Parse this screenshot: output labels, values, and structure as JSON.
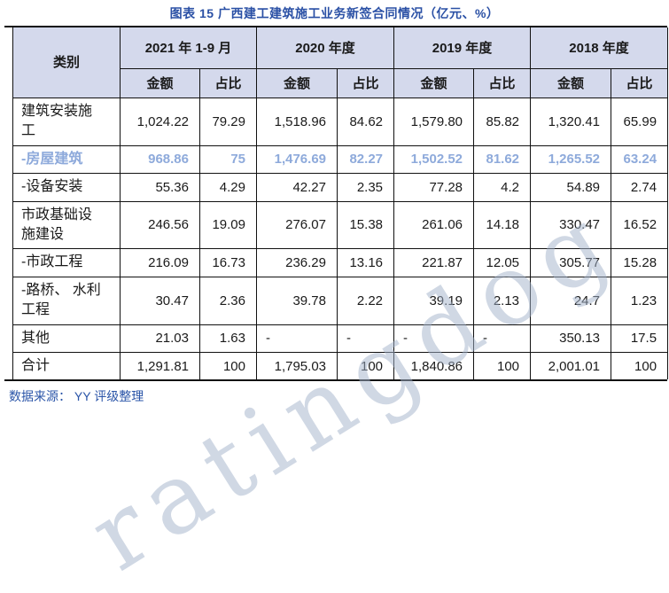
{
  "title": "图表 15 广西建工建筑施工业务新签合同情况（亿元、%）",
  "footer": {
    "source_label": "数据来源： YY 评级整理"
  },
  "watermark": {
    "text": "ratingdog",
    "color": "#a2b1ca"
  },
  "colors": {
    "title_blue": "#2a50a5",
    "footer_blue": "#2b55a8",
    "header_bg": "#d4d9ec",
    "highlight_row_blue": "#8eaadb",
    "border": "#111111"
  },
  "table": {
    "category_header": "类别",
    "year_headers": [
      "2021 年 1-9 月",
      "2020 年度",
      "2019 年度",
      "2018 年度"
    ],
    "sub_headers": {
      "amount": "金额",
      "share": "占比"
    },
    "rows": [
      {
        "label": "建筑安装施工",
        "highlight": false,
        "values": [
          "1,024.22",
          "79.29",
          "1,518.96",
          "84.62",
          "1,579.80",
          "85.82",
          "1,320.41",
          "65.99"
        ]
      },
      {
        "label": "-房屋建筑",
        "highlight": true,
        "values": [
          "968.86",
          "75",
          "1,476.69",
          "82.27",
          "1,502.52",
          "81.62",
          "1,265.52",
          "63.24"
        ]
      },
      {
        "label": "-设备安装",
        "highlight": false,
        "values": [
          "55.36",
          "4.29",
          "42.27",
          "2.35",
          "77.28",
          "4.2",
          "54.89",
          "2.74"
        ]
      },
      {
        "label": "市政基础设施建设",
        "highlight": false,
        "values": [
          "246.56",
          "19.09",
          "276.07",
          "15.38",
          "261.06",
          "14.18",
          "330.47",
          "16.52"
        ]
      },
      {
        "label": "-市政工程",
        "highlight": false,
        "values": [
          "216.09",
          "16.73",
          "236.29",
          "13.16",
          "221.87",
          "12.05",
          "305.77",
          "15.28"
        ]
      },
      {
        "label": "-路桥、 水利工程",
        "highlight": false,
        "values": [
          "30.47",
          "2.36",
          "39.78",
          "2.22",
          "39.19",
          "2.13",
          "24.7",
          "1.23"
        ]
      },
      {
        "label": "其他",
        "highlight": false,
        "values": [
          "21.03",
          "1.63",
          "-",
          "-",
          "-",
          "-",
          "350.13",
          "17.5"
        ]
      },
      {
        "label": "合计",
        "highlight": false,
        "values": [
          "1,291.81",
          "100",
          "1,795.03",
          "100",
          "1,840.86",
          "100",
          "2,001.01",
          "100"
        ]
      }
    ]
  },
  "chart_data": {
    "type": "table",
    "title": "图表 15 广西建工建筑施工业务新签合同情况（亿元、%）",
    "columns": [
      "类别",
      "2021年1-9月 金额",
      "2021年1-9月 占比",
      "2020年度 金额",
      "2020年度 占比",
      "2019年度 金额",
      "2019年度 占比",
      "2018年度 金额",
      "2018年度 占比"
    ],
    "rows": [
      [
        "建筑安装施工",
        1024.22,
        79.29,
        1518.96,
        84.62,
        1579.8,
        85.82,
        1320.41,
        65.99
      ],
      [
        "-房屋建筑",
        968.86,
        75,
        1476.69,
        82.27,
        1502.52,
        81.62,
        1265.52,
        63.24
      ],
      [
        "-设备安装",
        55.36,
        4.29,
        42.27,
        2.35,
        77.28,
        4.2,
        54.89,
        2.74
      ],
      [
        "市政基础设施建设",
        246.56,
        19.09,
        276.07,
        15.38,
        261.06,
        14.18,
        330.47,
        16.52
      ],
      [
        "-市政工程",
        216.09,
        16.73,
        236.29,
        13.16,
        221.87,
        12.05,
        305.77,
        15.28
      ],
      [
        "-路桥、水利工程",
        30.47,
        2.36,
        39.78,
        2.22,
        39.19,
        2.13,
        24.7,
        1.23
      ],
      [
        "其他",
        21.03,
        1.63,
        null,
        null,
        null,
        null,
        350.13,
        17.5
      ],
      [
        "合计",
        1291.81,
        100,
        1795.03,
        100,
        1840.86,
        100,
        2001.01,
        100
      ]
    ]
  }
}
